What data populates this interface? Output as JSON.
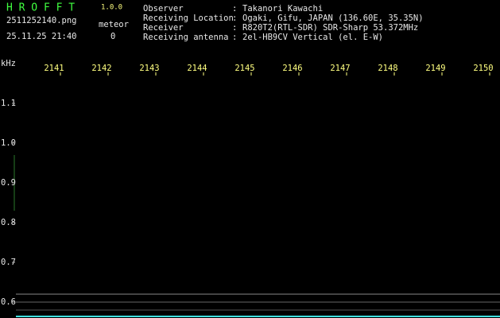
{
  "header": {
    "app": "H R O F F T",
    "version": "1.0.0",
    "file": "2511252140.png",
    "meteor_label": "meteor",
    "datetime": "25.11.25 21:40",
    "meteor_count": "0",
    "fields": [
      {
        "label": "Observer",
        "value": "Takanori Kawachi"
      },
      {
        "label": "Receiving Location",
        "value": "Ogaki, Gifu, JAPAN (136.60E, 35.35N)"
      },
      {
        "label": "Receiver",
        "value": "R820T2(RTL-SDR) SDR-Sharp 53.372MHz"
      },
      {
        "label": "Receiving antenna",
        "value": "2el-HB9CV Vertical (el. E-W)"
      }
    ],
    "separator": ":"
  },
  "chart_data": {
    "type": "spectrogram",
    "y_label": "kHz",
    "xlim": [
      2140.2,
      2150.35
    ],
    "xticks": [
      2141,
      2142,
      2143,
      2144,
      2145,
      2146,
      2147,
      2148,
      2149,
      2150
    ],
    "ylim": [
      0.56,
      1.17
    ],
    "yticks": [
      {
        "value": 0.6,
        "label": "0.6"
      },
      {
        "value": 0.7,
        "label": "0.7"
      },
      {
        "value": 0.8,
        "label": "0.8"
      },
      {
        "value": 0.9,
        "label": "0.9"
      },
      {
        "value": 1.0,
        "label": "1.0"
      },
      {
        "value": 1.1,
        "label": "1.1"
      }
    ],
    "tick_color": "#ffff80",
    "background": "#000000"
  }
}
